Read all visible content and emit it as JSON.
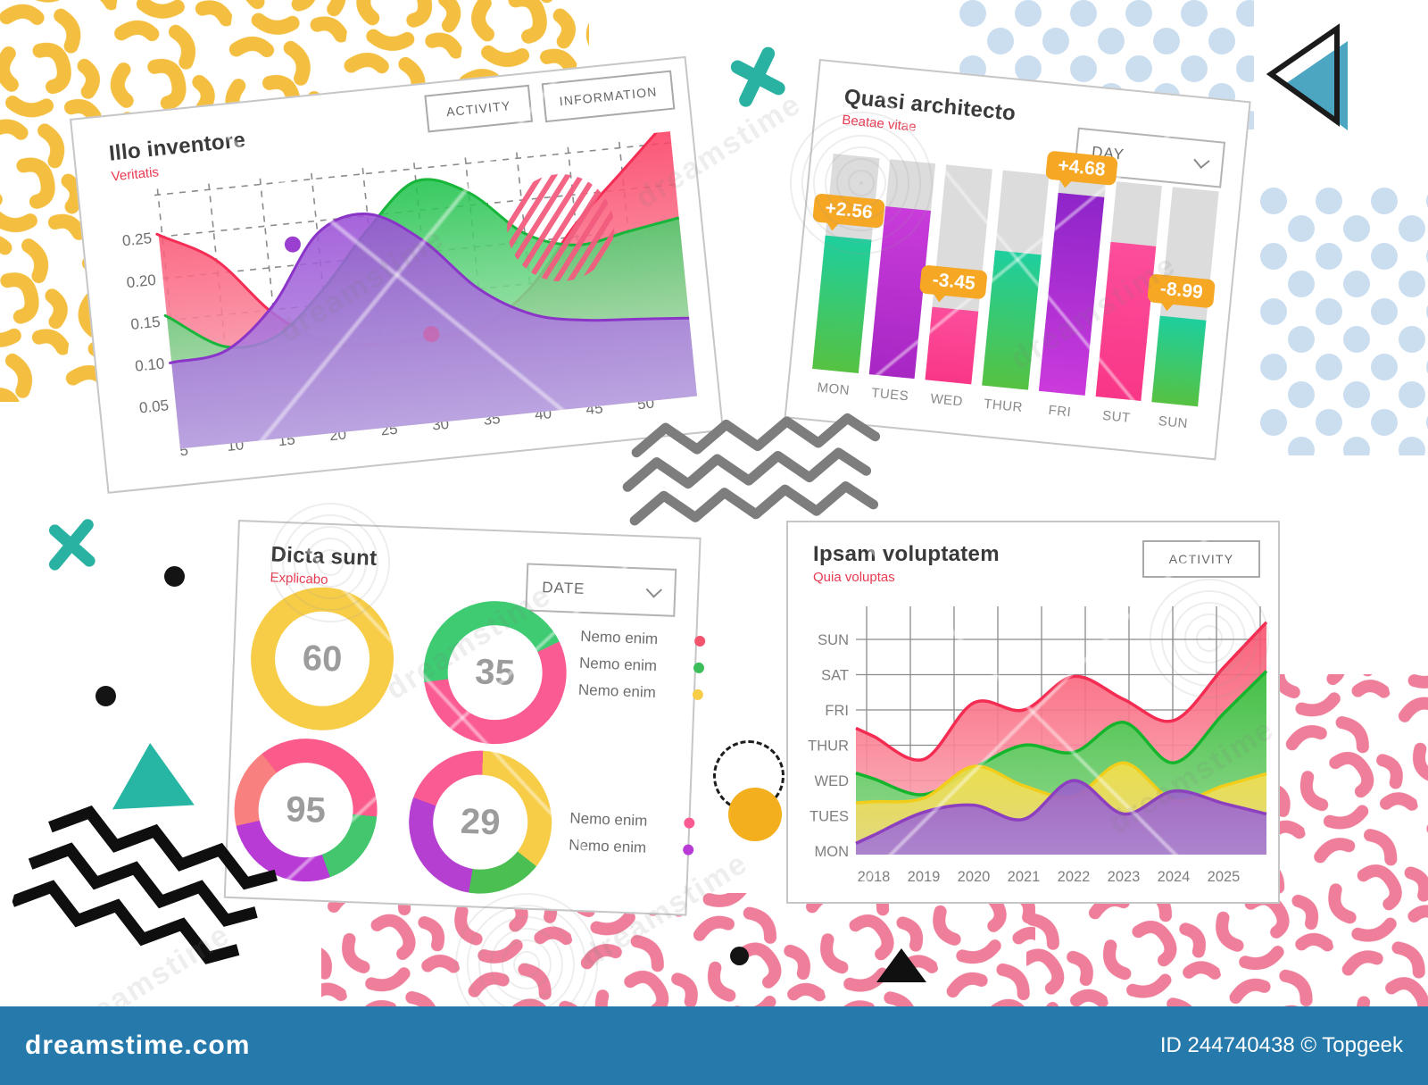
{
  "page": {
    "bar_color": "#2579AB",
    "site": "dreamstime.com",
    "credit": "ID 244740438 © Topgeek",
    "watermark_text": "dreamstime"
  },
  "chart_data": [
    {
      "type": "area",
      "id": "wave",
      "title": "Illo inventore",
      "subtitle": "Veritatis",
      "buttons": [
        "ACTIVITY",
        "INFORMATION"
      ],
      "grid": "dashed",
      "x": [
        5,
        10,
        15,
        20,
        25,
        30,
        35,
        40,
        45,
        50
      ],
      "ytick_labels": [
        "0.25",
        "0.20",
        "0.15",
        "0.10",
        "0.05"
      ],
      "ytick_values": [
        0.25,
        0.2,
        0.15,
        0.1,
        0.05
      ],
      "ylim": [
        0.02,
        0.305
      ],
      "series": [
        {
          "name": "red",
          "top": "#FB3A5E",
          "bottom": "#F9B8C4",
          "stroke": "#F52D55",
          "values": [
            0.25,
            0.215,
            0.145,
            0.105,
            0.097,
            0.098,
            0.105,
            0.145,
            0.215,
            0.272
          ]
        },
        {
          "name": "green",
          "top": "#1DC24B",
          "bottom": "#CDEBCB",
          "stroke": "#17B53A",
          "values": [
            0.152,
            0.112,
            0.118,
            0.168,
            0.235,
            0.285,
            0.265,
            0.21,
            0.19,
            0.2
          ]
        },
        {
          "name": "purple",
          "top": "#9B4FD6",
          "bottom": "#B79BE3",
          "stroke": "#8A35C8",
          "values": [
            0.1,
            0.107,
            0.155,
            0.235,
            0.252,
            0.215,
            0.15,
            0.113,
            0.1,
            0.095
          ]
        }
      ],
      "markers": [
        {
          "x": 17.5,
          "y": 0.225,
          "color": "#9B3FD0",
          "opacity": 1
        },
        {
          "x": 30,
          "y": 0.102,
          "color": "#D8559B",
          "opacity": 0.55
        }
      ],
      "striped_circle": {
        "color": "#F25C7E"
      }
    },
    {
      "type": "bar",
      "id": "day-bars",
      "title": "Quasi architecto",
      "subtitle": "Beatae vitae",
      "dropdown_label": "DAY",
      "categories": [
        "MON",
        "TUES",
        "WED",
        "THUR",
        "FRI",
        "SUT",
        "SUN"
      ],
      "values_pct": [
        62,
        78,
        34,
        63,
        92,
        72,
        40
      ],
      "bar_colors": [
        [
          "#1ECF9E",
          "#56C242"
        ],
        [
          "#C93BDB",
          "#A727C4"
        ],
        [
          "#FC4E9B",
          "#F93687"
        ],
        [
          "#1ECF9E",
          "#56C242"
        ],
        [
          "#8E25C9",
          "#CB3ADC"
        ],
        [
          "#FC4E9B",
          "#F93687"
        ],
        [
          "#1ECF9E",
          "#56C242"
        ]
      ],
      "track_color": "#DCDCDC",
      "badge_color": "#F6A723",
      "badges": [
        {
          "index": 0,
          "label": "+2.56"
        },
        {
          "index": 2,
          "label": "-3.45"
        },
        {
          "index": 4,
          "label": "+4.68"
        },
        {
          "index": 6,
          "label": "-8.99"
        }
      ]
    },
    {
      "type": "donut",
      "id": "donuts",
      "title": "Dicta sunt",
      "subtitle": "Explicabo",
      "dropdown_label": "DATE",
      "donuts": [
        {
          "value": "60",
          "from": 0,
          "segments": [
            {
              "color": "#F7CD48",
              "pct": 100
            }
          ]
        },
        {
          "value": "35",
          "from": -100,
          "segments": [
            {
              "color": "#3ECB72",
              "pct": 45
            },
            {
              "color": "#FB5B93",
              "pct": 55
            }
          ]
        },
        {
          "value": "95",
          "from": -105,
          "segments": [
            {
              "color": "#F8807E",
              "pct": 18
            },
            {
              "color": "#FB5B8B",
              "pct": 37
            },
            {
              "color": "#43C66E",
              "pct": 18
            },
            {
              "color": "#B93BD6",
              "pct": 27
            }
          ]
        },
        {
          "value": "29",
          "from": 0,
          "segments": [
            {
              "color": "#F7CD48",
              "pct": 35
            },
            {
              "color": "#4CBF52",
              "pct": 17
            },
            {
              "color": "#B43FD1",
              "pct": 28
            },
            {
              "color": "#FB5B93",
              "pct": 20
            }
          ]
        }
      ],
      "legend_groups": [
        {
          "items": [
            {
              "label": "Nemo enim",
              "color": "#F2536D"
            },
            {
              "label": "Nemo enim",
              "color": "#3DBE5B"
            },
            {
              "label": "Nemo enim",
              "color": "#F7CD48"
            }
          ]
        },
        {
          "items": [
            {
              "label": "Nemo enim",
              "color": "#FB5B93"
            },
            {
              "label": "Nemo enim",
              "color": "#B93BD6"
            }
          ]
        }
      ]
    },
    {
      "type": "area",
      "id": "years",
      "title": "Ipsam voluptatem",
      "subtitle": "Quia voluptas",
      "buttons": [
        "ACTIVITY"
      ],
      "grid": "solid",
      "x": [
        2018,
        2019,
        2020,
        2021,
        2022,
        2023,
        2024,
        2025
      ],
      "ycats": [
        "MON",
        "TUES",
        "WED",
        "THUR",
        "FRI",
        "SAT",
        "SUN"
      ],
      "series": [
        {
          "name": "red",
          "top": "#F9506B",
          "bottom": "#FBB3BD",
          "stroke": "#F42C52",
          "values": [
            4.25,
            3.6,
            5.2,
            5.0,
            5.95,
            5.3,
            4.7,
            6.2
          ]
        },
        {
          "name": "green",
          "top": "#30C840",
          "bottom": "#90DE90",
          "stroke": "#14B52C",
          "values": [
            3.05,
            2.6,
            3.35,
            4.0,
            3.8,
            4.65,
            3.5,
            4.9
          ]
        },
        {
          "name": "yellow",
          "top": "#F7E049",
          "bottom": "#E8D77E",
          "stroke": "#F2CE1B",
          "values": [
            2.4,
            2.5,
            3.4,
            2.85,
            2.55,
            3.5,
            2.45,
            2.85
          ]
        },
        {
          "name": "purple",
          "top": "#9A5BCB",
          "bottom": "#A67BD6",
          "stroke": "#8C3FBF",
          "values": [
            1.45,
            2.1,
            2.3,
            1.9,
            3.0,
            2.05,
            2.7,
            2.35
          ]
        }
      ]
    }
  ]
}
